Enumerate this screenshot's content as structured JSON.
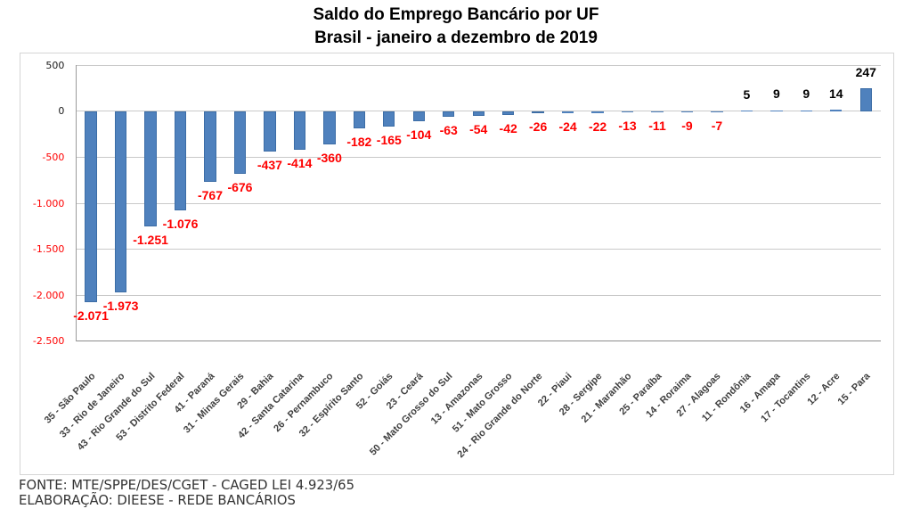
{
  "title": {
    "line1": "Saldo do Emprego Bancário por UF",
    "line2": "Brasil - janeiro a dezembro de 2019"
  },
  "footer": {
    "line1": "FONTE: MTE/SPPE/DES/CGET - CAGED LEI 4.923/65",
    "line2": "ELABORAÇÃO: DIEESE - REDE BANCÁRIOS"
  },
  "colors": {
    "bar_fill": "#4f81bd",
    "bar_border": "#3c6da6",
    "negative_label": "#fe0000",
    "positive_label": "#000000",
    "ytick_positive": "#1a1a1a",
    "ytick_negative": "#fe0000",
    "gridline": "#c9c9c9",
    "axis_line": "#9b9b9b",
    "bottom_line": "#8c8c8c"
  },
  "chart_data": {
    "type": "bar",
    "title": "Saldo do Emprego Bancário por UF — Brasil - janeiro a dezembro de 2019",
    "xlabel": "",
    "ylabel": "",
    "ylim": [
      -2500,
      500
    ],
    "grid": true,
    "y_ticks": [
      {
        "value": 500,
        "label": "500"
      },
      {
        "value": 0,
        "label": "0"
      },
      {
        "value": -500,
        "label": "-500"
      },
      {
        "value": -1000,
        "label": "-1.000"
      },
      {
        "value": -1500,
        "label": "-1.500"
      },
      {
        "value": -2000,
        "label": "-2.000"
      },
      {
        "value": -2500,
        "label": "-2.500"
      }
    ],
    "categories": [
      "35 - São Paulo",
      "33 - Rio de Janeiro",
      "43 - Rio Grande do Sul",
      "53 - Distrito Federal",
      "41 - Paraná",
      "31 - Minas Gerais",
      "29 - Bahia",
      "42 - Santa Catarina",
      "26 - Pernambuco",
      "32 - Espírito Santo",
      "52 - Goiás",
      "23 - Ceará",
      "50 - Mato Grosso do Sul",
      "13 - Amazonas",
      "51 - Mato Grosso",
      "24 - Rio Grande do Norte",
      "22 - Piaui",
      "28 - Sergipe",
      "21 - Maranhão",
      "25 - Paraíba",
      "14 - Roraima",
      "27 - Alagoas",
      "11 - Rondônia",
      "16 - Amapa",
      "17 - Tocantins",
      "12 - Acre",
      "15 - Para"
    ],
    "values": [
      -2071,
      -1973,
      -1251,
      -1076,
      -767,
      -676,
      -437,
      -414,
      -360,
      -182,
      -165,
      -104,
      -63,
      -54,
      -42,
      -26,
      -24,
      -22,
      -13,
      -11,
      -9,
      -7,
      5,
      9,
      9,
      14,
      247
    ],
    "value_labels": [
      "-2.071",
      "-1.973",
      "-1.251",
      "-1.076",
      "-767",
      "-676",
      "-437",
      "-414",
      "-360",
      "-182",
      "-165",
      "-104",
      "-63",
      "-54",
      "-42",
      "-26",
      "-24",
      "-22",
      "-13",
      "-11",
      "-9",
      "-7",
      "5",
      "9",
      "9",
      "14",
      "247"
    ]
  }
}
